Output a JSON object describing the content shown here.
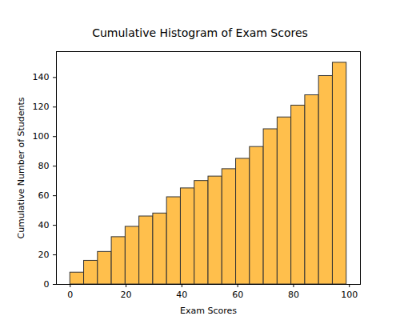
{
  "chart_data": {
    "type": "histogram",
    "title": "Cumulative Histogram of Exam Scores",
    "x_label": "Exam Scores",
    "y_label": "Cumulative Number of Students",
    "bins": [
      0,
      4.95,
      9.9,
      14.85,
      19.8,
      24.75,
      29.7,
      34.65,
      39.6,
      44.55,
      49.5,
      54.45,
      59.4,
      64.35,
      69.3,
      74.25,
      79.2,
      84.15,
      89.1,
      94.05,
      99
    ],
    "values": [
      8,
      16,
      22,
      32,
      39,
      46,
      48,
      59,
      65,
      70,
      73,
      78,
      85,
      93,
      105,
      113,
      121,
      128,
      141,
      150
    ],
    "color": "#ffbf4c",
    "xlim": [
      -4.95,
      103.95
    ],
    "ylim": [
      0,
      157.5
    ],
    "xticks": [
      0,
      20,
      40,
      60,
      80,
      100
    ],
    "yticks": [
      0,
      20,
      40,
      60,
      80,
      100,
      120,
      140
    ]
  }
}
